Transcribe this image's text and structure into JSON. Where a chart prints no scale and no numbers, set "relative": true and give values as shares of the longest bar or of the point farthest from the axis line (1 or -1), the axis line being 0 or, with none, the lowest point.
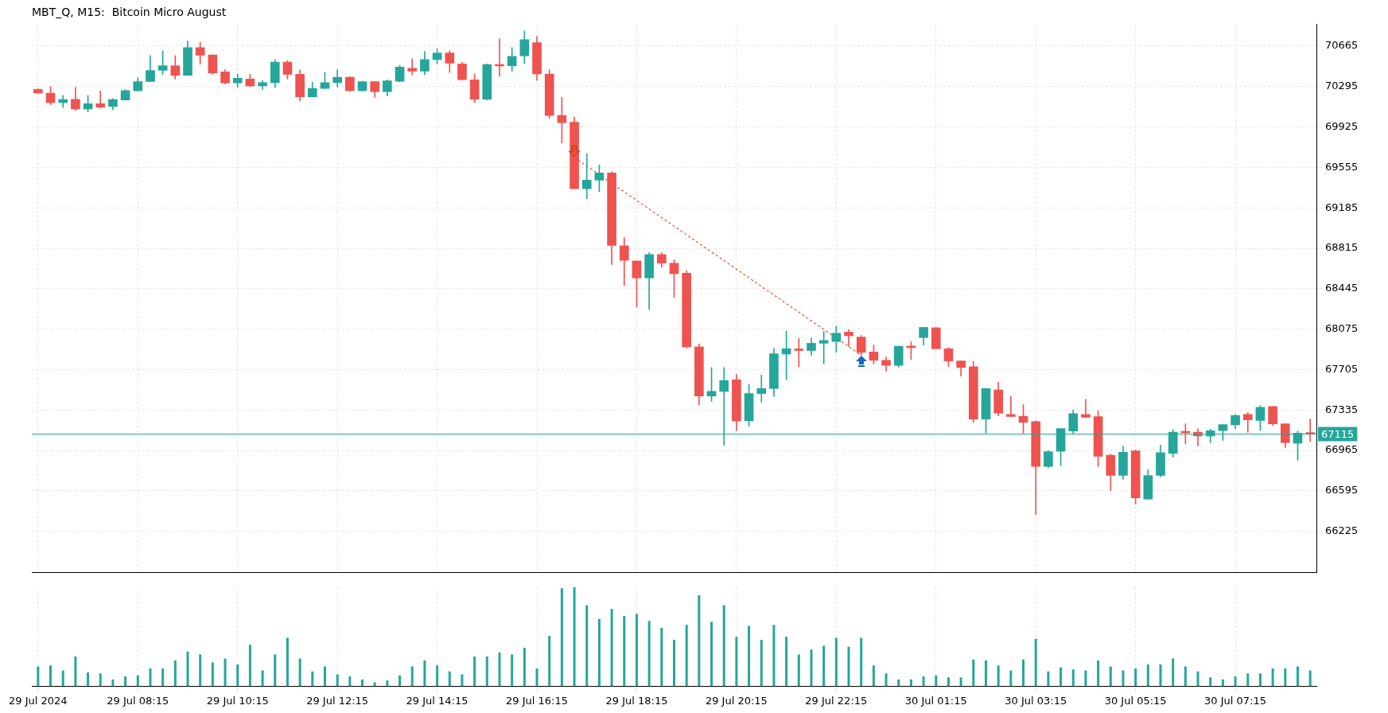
{
  "chart_data": [
    {
      "type": "candlestick",
      "title": "MBT_Q, M15:  Bitcoin Micro August",
      "categories": [
        null,
        null,
        null,
        null,
        null,
        null,
        null,
        null,
        null,
        null,
        null,
        null,
        null,
        null,
        null,
        null,
        null,
        null,
        null,
        null,
        null,
        null,
        null,
        null,
        null,
        null,
        null,
        null,
        null,
        null,
        null,
        null,
        null,
        null,
        null,
        null,
        null,
        null,
        null,
        null,
        null,
        null,
        null,
        null,
        null,
        null,
        null,
        null,
        null,
        null,
        null,
        null,
        null,
        null,
        null,
        null,
        null,
        null,
        null,
        null,
        null,
        null,
        null,
        null,
        null,
        null,
        null,
        null,
        null,
        null,
        null,
        null,
        null,
        null,
        null,
        null,
        null,
        null,
        null,
        null,
        null,
        null,
        null,
        null,
        null,
        null,
        null,
        null,
        null,
        null,
        null,
        null,
        null,
        null,
        null,
        null,
        null,
        null,
        null,
        null,
        null,
        null,
        null
      ],
      "ohlc": [
        [
          70270,
          70275,
          70230,
          70235
        ],
        [
          70235,
          70295,
          70130,
          70149
        ],
        [
          70149,
          70215,
          70103,
          70176
        ],
        [
          70179,
          70288,
          70077,
          70090
        ],
        [
          70090,
          70215,
          70063,
          70139
        ],
        [
          70139,
          70255,
          70100,
          70106
        ],
        [
          70113,
          70186,
          70083,
          70176
        ],
        [
          70172,
          70268,
          70172,
          70258
        ],
        [
          70255,
          70374,
          70255,
          70341
        ],
        [
          70341,
          70579,
          70338,
          70443
        ],
        [
          70443,
          70622,
          70407,
          70486
        ],
        [
          70486,
          70579,
          70364,
          70397
        ],
        [
          70397,
          70711,
          70397,
          70652
        ],
        [
          70652,
          70701,
          70500,
          70582
        ],
        [
          70585,
          70585,
          70407,
          70420
        ],
        [
          70430,
          70450,
          70318,
          70328
        ],
        [
          70328,
          70410,
          70288,
          70371
        ],
        [
          70364,
          70407,
          70295,
          70301
        ],
        [
          70301,
          70351,
          70268,
          70331
        ],
        [
          70331,
          70542,
          70285,
          70519
        ],
        [
          70519,
          70533,
          70364,
          70407
        ],
        [
          70407,
          70447,
          70163,
          70202
        ],
        [
          70202,
          70334,
          70202,
          70278
        ],
        [
          70278,
          70424,
          70278,
          70331
        ],
        [
          70331,
          70450,
          70291,
          70381
        ],
        [
          70381,
          70387,
          70252,
          70258
        ],
        [
          70258,
          70341,
          70252,
          70341
        ],
        [
          70341,
          70341,
          70196,
          70248
        ],
        [
          70248,
          70357,
          70209,
          70348
        ],
        [
          70344,
          70490,
          70338,
          70473
        ],
        [
          70463,
          70549,
          70404,
          70437
        ],
        [
          70437,
          70615,
          70404,
          70542
        ],
        [
          70542,
          70642,
          70503,
          70602
        ],
        [
          70602,
          70622,
          70424,
          70509
        ],
        [
          70503,
          70516,
          70357,
          70357
        ],
        [
          70357,
          70410,
          70149,
          70179
        ],
        [
          70179,
          70503,
          70172,
          70496
        ],
        [
          70496,
          70731,
          70391,
          70483
        ],
        [
          70486,
          70652,
          70437,
          70572
        ],
        [
          70576,
          70804,
          70503,
          70724
        ],
        [
          70698,
          70754,
          70351,
          70410
        ],
        [
          70410,
          70450,
          70004,
          70030
        ],
        [
          70030,
          70199,
          69779,
          69964
        ],
        [
          69968,
          70017,
          69360,
          69360
        ],
        [
          69360,
          69680,
          69267,
          69439
        ],
        [
          69439,
          69578,
          69333,
          69505
        ],
        [
          69505,
          69515,
          68666,
          68841
        ],
        [
          68838,
          68914,
          68474,
          68705
        ],
        [
          68699,
          68699,
          68279,
          68544
        ],
        [
          68544,
          68775,
          68256,
          68758
        ],
        [
          68758,
          68775,
          68643,
          68679
        ],
        [
          68679,
          68709,
          68365,
          68583
        ],
        [
          68587,
          68610,
          67903,
          67913
        ],
        [
          67913,
          67939,
          67384,
          67463
        ],
        [
          67463,
          67724,
          67414,
          67506
        ],
        [
          67506,
          67724,
          67011,
          67605
        ],
        [
          67612,
          67661,
          67146,
          67235
        ],
        [
          67235,
          67572,
          67189,
          67486
        ],
        [
          67486,
          67655,
          67407,
          67532
        ],
        [
          67532,
          67899,
          67460,
          67850
        ],
        [
          67847,
          68058,
          67615,
          67896
        ],
        [
          67893,
          67989,
          67731,
          67880
        ],
        [
          67880,
          67995,
          67837,
          67946
        ],
        [
          67946,
          68055,
          67757,
          67972
        ],
        [
          67962,
          68104,
          67863,
          68038
        ],
        [
          68048,
          68071,
          67916,
          68015
        ],
        [
          68002,
          68018,
          67837,
          67863
        ],
        [
          67866,
          67929,
          67757,
          67790
        ],
        [
          67790,
          67820,
          67691,
          67744
        ],
        [
          67744,
          67919,
          67727,
          67919
        ],
        [
          67919,
          67959,
          67797,
          67906
        ],
        [
          67998,
          68091,
          67929,
          68091
        ],
        [
          68088,
          68088,
          67896,
          67896
        ],
        [
          67896,
          67906,
          67734,
          67784
        ],
        [
          67784,
          67784,
          67645,
          67724
        ],
        [
          67731,
          67780,
          67222,
          67252
        ],
        [
          67252,
          67532,
          67123,
          67532
        ],
        [
          67519,
          67589,
          67281,
          67307
        ],
        [
          67295,
          67460,
          67275,
          67275
        ],
        [
          67278,
          67384,
          67123,
          67222
        ],
        [
          67229,
          67239,
          66376,
          66819
        ],
        [
          66819,
          66964,
          66806,
          66954
        ],
        [
          66957,
          67166,
          66826,
          67166
        ],
        [
          67143,
          67334,
          67120,
          67301
        ],
        [
          67295,
          67433,
          67268,
          67268
        ],
        [
          67275,
          67328,
          66819,
          66911
        ],
        [
          66921,
          66931,
          66598,
          66736
        ],
        [
          66736,
          67004,
          66700,
          66948
        ],
        [
          66961,
          66971,
          66475,
          66531
        ],
        [
          66521,
          66789,
          66521,
          66736
        ],
        [
          66736,
          67014,
          66723,
          66945
        ],
        [
          66938,
          67156,
          66905,
          67133
        ],
        [
          67140,
          67209,
          67024,
          67126
        ],
        [
          67133,
          67163,
          67007,
          67097
        ],
        [
          67097,
          67159,
          67037,
          67146
        ],
        [
          67146,
          67202,
          67057,
          67202
        ],
        [
          67199,
          67295,
          67163,
          67285
        ],
        [
          67295,
          67311,
          67130,
          67245
        ],
        [
          67239,
          67377,
          67146,
          67361
        ],
        [
          67367,
          67367,
          67196,
          67209
        ],
        [
          67209,
          67209,
          66991,
          67037
        ],
        [
          67031,
          67143,
          66875,
          67123
        ],
        [
          67120,
          67252,
          67047,
          67115
        ]
      ],
      "series": [
        {
          "type": "line",
          "color": "#e8502e",
          "line_style": "dotted",
          "values": [
            null,
            null,
            null,
            null,
            null,
            null,
            null,
            null,
            null,
            null,
            null,
            null,
            null,
            null,
            null,
            null,
            null,
            null,
            null,
            null,
            null,
            null,
            null,
            null,
            null,
            null,
            null,
            null,
            null,
            null,
            null,
            null,
            null,
            null,
            null,
            null,
            null,
            null,
            null,
            null,
            null,
            null,
            null,
            69647,
            null,
            null,
            null,
            null,
            null,
            null,
            null,
            null,
            null,
            null,
            null,
            null,
            null,
            null,
            null,
            null,
            null,
            null,
            null,
            null,
            null,
            null,
            67837,
            null,
            null,
            null,
            null,
            null,
            null,
            null,
            null,
            null,
            null,
            null,
            null,
            null,
            null,
            null,
            null,
            null,
            null,
            null,
            null,
            null,
            null,
            null,
            null,
            null,
            null,
            null,
            null,
            null,
            null,
            null,
            null,
            null,
            null,
            null,
            null
          ]
        }
      ],
      "ylim": [
        65850,
        70863
      ],
      "yticks": [
        66225,
        66595,
        66965,
        67335,
        67705,
        68075,
        68445,
        68815,
        69185,
        69555,
        69925,
        70295,
        70665
      ],
      "ref_lines": [
        {
          "axis": "y",
          "value": 67115,
          "label": "67115",
          "color": "#26a69a"
        }
      ],
      "grid": true,
      "legend": false,
      "tick_labels": "y"
    },
    {
      "type": "bar",
      "relative": true,
      "color": "#26a69a",
      "categories": [
        "29 Jul 2024",
        null,
        null,
        null,
        null,
        null,
        null,
        null,
        "29 Jul 08:15",
        null,
        null,
        null,
        null,
        null,
        null,
        null,
        "29 Jul 10:15",
        null,
        null,
        null,
        null,
        null,
        null,
        null,
        "29 Jul 12:15",
        null,
        null,
        null,
        null,
        null,
        null,
        null,
        "29 Jul 14:15",
        null,
        null,
        null,
        null,
        null,
        null,
        null,
        "29 Jul 16:15",
        null,
        null,
        null,
        null,
        null,
        null,
        null,
        "29 Jul 18:15",
        null,
        null,
        null,
        null,
        null,
        null,
        null,
        "29 Jul 20:15",
        null,
        null,
        null,
        null,
        null,
        null,
        null,
        "29 Jul 22:15",
        null,
        null,
        null,
        null,
        null,
        null,
        null,
        "30 Jul 01:15",
        null,
        null,
        null,
        null,
        null,
        null,
        null,
        "30 Jul 03:15",
        null,
        null,
        null,
        null,
        null,
        null,
        null,
        "30 Jul 05:15",
        null,
        null,
        null,
        null,
        null,
        null,
        null,
        "30 Jul 07:15",
        null,
        null,
        null,
        null,
        null,
        null
      ],
      "values": [
        0.2,
        0.21,
        0.16,
        0.3,
        0.14,
        0.13,
        0.07,
        0.1,
        0.11,
        0.18,
        0.18,
        0.26,
        0.35,
        0.32,
        0.24,
        0.28,
        0.22,
        0.42,
        0.16,
        0.32,
        0.49,
        0.28,
        0.15,
        0.2,
        0.12,
        0.1,
        0.07,
        0.04,
        0.06,
        0.11,
        0.2,
        0.26,
        0.21,
        0.15,
        0.12,
        0.3,
        0.3,
        0.34,
        0.32,
        0.39,
        0.18,
        0.51,
        0.99,
        1,
        0.82,
        0.68,
        0.78,
        0.71,
        0.73,
        0.66,
        0.59,
        0.47,
        0.62,
        0.92,
        0.65,
        0.82,
        0.5,
        0.61,
        0.47,
        0.62,
        0.5,
        0.32,
        0.37,
        0.41,
        0.49,
        0.4,
        0.49,
        0.21,
        0.13,
        0.07,
        0.07,
        0.1,
        0.11,
        0.09,
        0.09,
        0.27,
        0.26,
        0.21,
        0.16,
        0.27,
        0.48,
        0.15,
        0.19,
        0.17,
        0.16,
        0.26,
        0.2,
        0.16,
        0.18,
        0.22,
        0.22,
        0.28,
        0.2,
        0.15,
        0.09,
        0.07,
        0.1,
        0.13,
        0.13,
        0.18,
        0.18,
        0.2,
        0.16
      ],
      "grid": "x",
      "legend": false,
      "tick_labels": "x"
    }
  ]
}
